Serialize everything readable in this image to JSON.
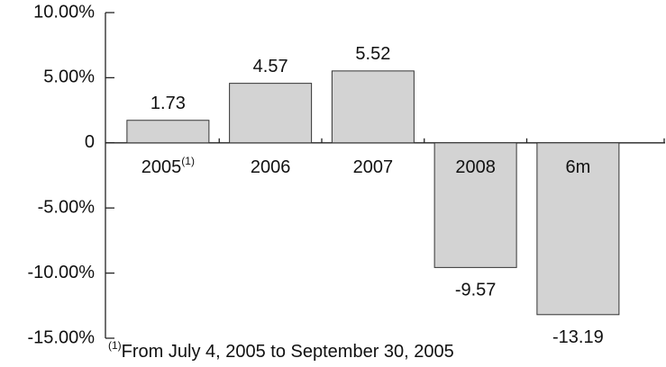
{
  "chart_data": {
    "type": "bar",
    "categories": [
      "2005",
      "2006",
      "2007",
      "2008",
      "6m"
    ],
    "category_note_marker": "(1)",
    "values": [
      1.73,
      4.57,
      5.52,
      -9.57,
      -13.19
    ],
    "color": "#d3d3d3",
    "ylim": [
      -15,
      10
    ],
    "yticks": [
      {
        "value": 10,
        "label": "10.00%"
      },
      {
        "value": 5,
        "label": "5.00%"
      },
      0,
      {
        "value": -5,
        "label": "-5.00%"
      },
      {
        "value": -10,
        "label": "-10.00%"
      },
      {
        "value": -15,
        "label": "-15.00%"
      }
    ],
    "footnote": "From July 4, 2005 to September 30, 2005"
  }
}
